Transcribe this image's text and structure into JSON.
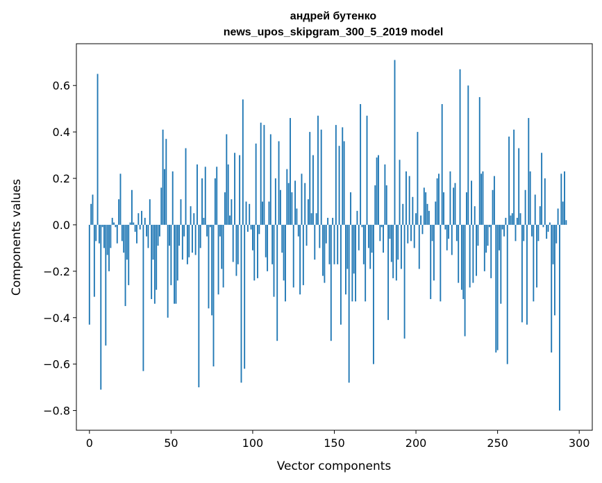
{
  "chart_data": {
    "type": "bar",
    "title": "андрей бутенко",
    "subtitle": "news_upos_skipgram_300_5_2019 model",
    "xlabel": "Vector components",
    "ylabel": "Components values",
    "xlim": [
      -8,
      308
    ],
    "ylim": [
      -0.885,
      0.78
    ],
    "xticks": [
      0,
      50,
      100,
      150,
      200,
      250,
      300
    ],
    "yticks": [
      -0.8,
      -0.6,
      -0.4,
      -0.2,
      0.0,
      0.2,
      0.4,
      0.6
    ],
    "ytick_labels": [
      "−0.8",
      "−0.6",
      "−0.4",
      "−0.2",
      "0.0",
      "0.2",
      "0.4",
      "0.6"
    ],
    "bar_color": "#1f77b4",
    "values": [
      -0.43,
      0.09,
      0.13,
      -0.31,
      -0.07,
      0.65,
      -0.08,
      -0.71,
      -0.01,
      -0.1,
      -0.52,
      -0.13,
      -0.2,
      -0.1,
      0.03,
      0.01,
      -0.01,
      -0.08,
      0.11,
      0.22,
      -0.07,
      -0.12,
      -0.35,
      -0.15,
      -0.26,
      0.01,
      0.15,
      0.01,
      -0.03,
      -0.08,
      0.05,
      -0.02,
      0.06,
      -0.63,
      0.03,
      -0.05,
      -0.1,
      0.11,
      -0.32,
      -0.15,
      -0.34,
      -0.28,
      -0.09,
      -0.05,
      0.16,
      0.41,
      0.24,
      0.37,
      -0.4,
      -0.09,
      -0.26,
      0.23,
      -0.34,
      -0.34,
      -0.24,
      -0.09,
      0.11,
      -0.15,
      -0.05,
      0.33,
      -0.17,
      -0.14,
      0.08,
      -0.12,
      0.05,
      -0.13,
      0.26,
      -0.7,
      -0.1,
      0.2,
      0.03,
      0.25,
      -0.05,
      -0.36,
      -0.01,
      -0.39,
      -0.61,
      0.2,
      0.25,
      -0.3,
      -0.05,
      -0.19,
      -0.27,
      0.14,
      0.39,
      0.26,
      0.04,
      0.11,
      -0.16,
      0.31,
      -0.22,
      -0.17,
      0.3,
      -0.68,
      0.54,
      -0.62,
      0.1,
      -0.03,
      0.09,
      -0.02,
      -0.11,
      -0.24,
      0.35,
      -0.23,
      -0.04,
      0.44,
      0.1,
      0.43,
      -0.14,
      -0.2,
      0.1,
      0.39,
      -0.17,
      -0.31,
      0.2,
      -0.5,
      0.36,
      0.15,
      -0.12,
      -0.24,
      -0.33,
      0.24,
      0.18,
      0.46,
      0.14,
      -0.27,
      0.19,
      0.07,
      -0.05,
      -0.3,
      0.22,
      -0.26,
      0.18,
      -0.09,
      0.11,
      0.4,
      0.05,
      0.3,
      -0.15,
      0.05,
      0.47,
      -0.1,
      0.41,
      -0.22,
      -0.25,
      -0.08,
      0.03,
      -0.17,
      -0.5,
      0.03,
      -0.17,
      0.43,
      -0.17,
      0.34,
      -0.43,
      0.42,
      0.36,
      -0.3,
      -0.19,
      -0.68,
      0.14,
      -0.33,
      -0.21,
      -0.33,
      0.06,
      -0.11,
      0.52,
      -0.01,
      -0.17,
      -0.33,
      0.47,
      -0.1,
      -0.19,
      -0.12,
      -0.6,
      0.17,
      0.29,
      0.3,
      -0.07,
      -0.01,
      -0.12,
      0.26,
      0.17,
      -0.41,
      -0.06,
      -0.16,
      -0.23,
      0.71,
      -0.24,
      -0.15,
      0.28,
      -0.19,
      0.09,
      -0.49,
      0.23,
      -0.08,
      0.21,
      -0.07,
      0.12,
      -0.1,
      0.05,
      0.4,
      -0.19,
      0.04,
      -0.04,
      0.16,
      0.14,
      0.09,
      0.06,
      -0.32,
      -0.07,
      -0.24,
      0.1,
      0.2,
      0.22,
      -0.33,
      0.52,
      0.14,
      -0.02,
      -0.11,
      -0.06,
      0.23,
      -0.13,
      0.16,
      0.18,
      -0.07,
      -0.25,
      0.67,
      -0.28,
      -0.32,
      -0.48,
      0.14,
      0.6,
      -0.27,
      0.19,
      -0.25,
      0.08,
      -0.22,
      -0.09,
      0.55,
      0.22,
      0.23,
      -0.2,
      -0.12,
      -0.09,
      -0.01,
      -0.23,
      0.15,
      0.21,
      -0.55,
      -0.54,
      -0.11,
      -0.34,
      -0.02,
      -0.05,
      0.03,
      -0.6,
      0.38,
      0.04,
      0.05,
      0.41,
      -0.07,
      0.03,
      0.33,
      0.05,
      -0.42,
      -0.07,
      0.15,
      -0.43,
      0.46,
      0.23,
      -0.05,
      -0.33,
      0.13,
      -0.27,
      -0.07,
      0.08,
      0.31,
      -0.01,
      0.2,
      -0.06,
      -0.03,
      0.01,
      -0.55,
      -0.17,
      -0.39,
      -0.08,
      0.07,
      -0.8,
      0.22,
      0.1,
      0.23,
      0.02
    ]
  }
}
